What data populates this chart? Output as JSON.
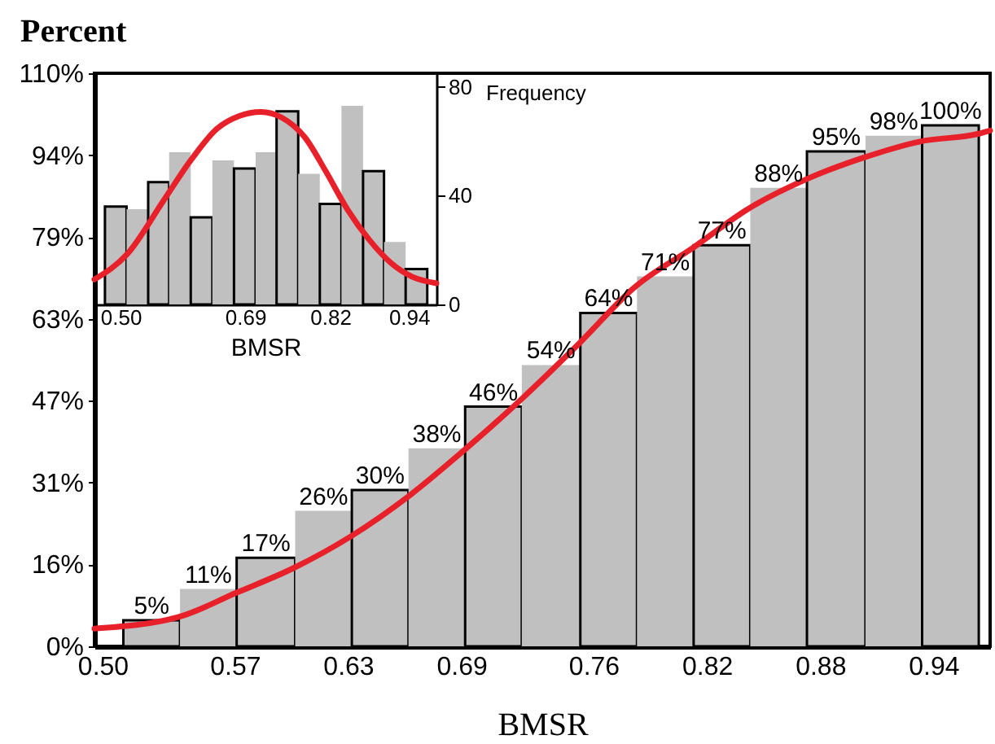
{
  "chart_data": [
    {
      "type": "histogram",
      "xlabel": "BMSR",
      "ylabel": "Percent",
      "xlim": [
        0.4957,
        0.97
      ],
      "ylim": [
        0,
        110
      ],
      "xticks": [
        {
          "value": 0.5,
          "label": "0.50"
        },
        {
          "value": 0.57,
          "label": "0.57"
        },
        {
          "value": 0.63,
          "label": "0.63"
        },
        {
          "value": 0.69,
          "label": "0.69"
        },
        {
          "value": 0.76,
          "label": "0.76"
        },
        {
          "value": 0.82,
          "label": "0.82"
        },
        {
          "value": 0.88,
          "label": "0.88"
        },
        {
          "value": 0.94,
          "label": "0.94"
        }
      ],
      "yticks": [
        {
          "value": 0,
          "label": "0%"
        },
        {
          "value": 15.71,
          "label": "16%"
        },
        {
          "value": 31.43,
          "label": "31%"
        },
        {
          "value": 47.14,
          "label": "47%"
        },
        {
          "value": 62.86,
          "label": "63%"
        },
        {
          "value": 78.57,
          "label": "79%"
        },
        {
          "value": 94.29,
          "label": "94%"
        },
        {
          "value": 110,
          "label": "110%"
        }
      ],
      "grid": false,
      "series": [
        {
          "color": "#c0c0c0",
          "bins": [
            0.511,
            0.541,
            0.571,
            0.602,
            0.632,
            0.662,
            0.692,
            0.722,
            0.753,
            0.783,
            0.813,
            0.843,
            0.873,
            0.904,
            0.934,
            0.964
          ],
          "values": [
            5,
            11,
            17,
            26,
            30,
            38,
            46,
            54,
            64,
            71,
            77,
            88,
            95,
            98,
            100
          ],
          "value_labels": [
            "5%",
            "11%",
            "17%",
            "26%",
            "30%",
            "38%",
            "46%",
            "54%",
            "64%",
            "71%",
            "77%",
            "88%",
            "95%",
            "98%",
            "100%"
          ]
        },
        {
          "type": "line",
          "color": "#e8202a",
          "x": [
            0.4957,
            0.54,
            0.571,
            0.601,
            0.631,
            0.662,
            0.691,
            0.722,
            0.752,
            0.782,
            0.813,
            0.842,
            0.873,
            0.903,
            0.933,
            0.964,
            0.97
          ],
          "values": [
            3.4,
            5.6,
            10.3,
            15,
            21,
            28.8,
            37.5,
            47.5,
            58,
            69,
            76.6,
            84,
            89.7,
            93.8,
            96.9,
            98.4,
            99
          ]
        }
      ]
    },
    {
      "type": "histogram",
      "xlabel": "BMSR",
      "ylabel": "Frequency",
      "xlim": [
        0.46,
        0.982
      ],
      "ylim": [
        0,
        85
      ],
      "xticks": [
        {
          "value": 0.5,
          "label": "0.50"
        },
        {
          "value": 0.69,
          "label": "0.69"
        },
        {
          "value": 0.82,
          "label": "0.82"
        },
        {
          "value": 0.94,
          "label": "0.94"
        }
      ],
      "yticks": [
        0,
        40,
        80
      ],
      "grid": false,
      "series": [
        {
          "color": "#c0c0c0",
          "bins": [
            0.476,
            0.509,
            0.542,
            0.574,
            0.607,
            0.64,
            0.673,
            0.706,
            0.738,
            0.771,
            0.804,
            0.837,
            0.87,
            0.902,
            0.935,
            0.968
          ],
          "values": [
            36,
            35,
            45,
            56,
            32,
            53,
            50,
            56,
            71,
            48,
            37,
            73,
            49,
            23,
            13
          ]
        },
        {
          "type": "line",
          "color": "#e8202a",
          "x": [
            0.46,
            0.51,
            0.565,
            0.607,
            0.647,
            0.681,
            0.714,
            0.746,
            0.781,
            0.813,
            0.846,
            0.88,
            0.912,
            0.944,
            0.982
          ],
          "values": [
            9.2,
            18.5,
            38,
            53,
            64.6,
            69.3,
            70.8,
            68.7,
            61.5,
            49,
            35,
            23.6,
            15.4,
            10.3,
            7.8
          ]
        }
      ]
    }
  ]
}
